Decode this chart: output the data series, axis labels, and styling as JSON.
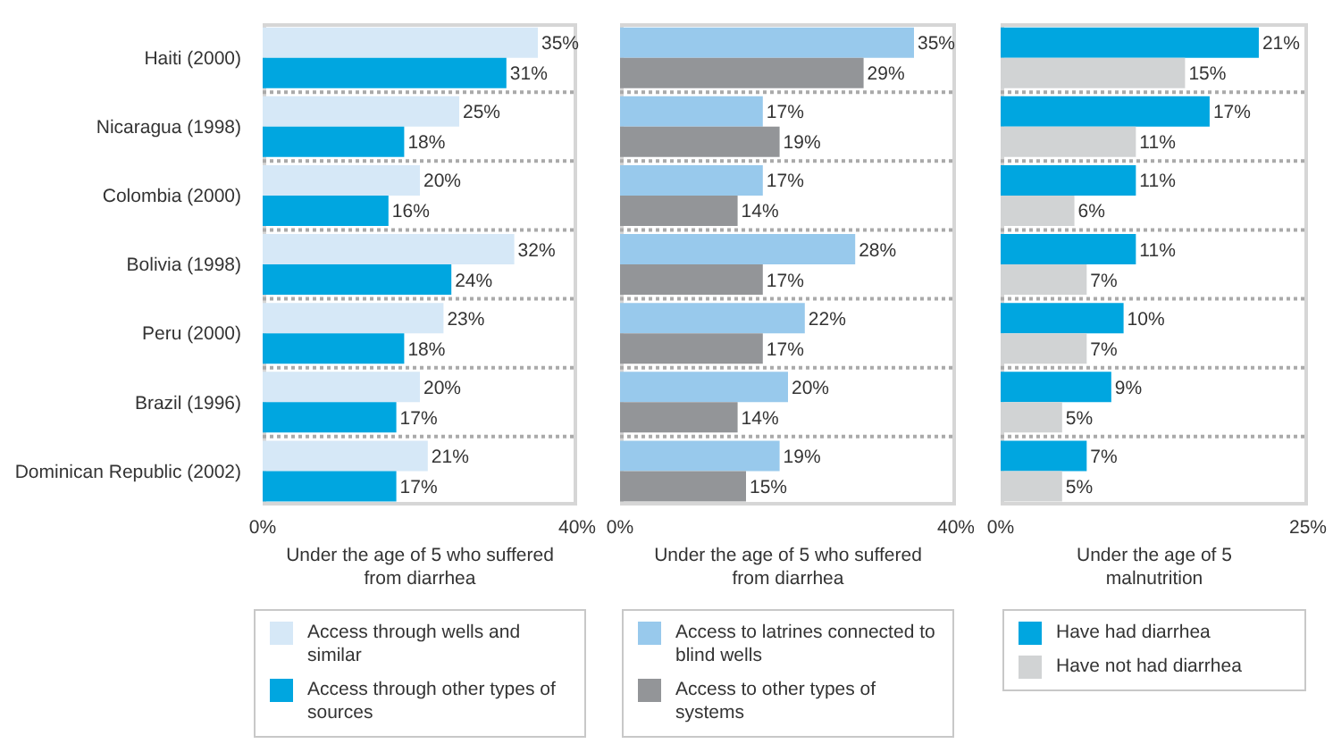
{
  "chart_data": [
    {
      "type": "bar",
      "orientation": "horizontal",
      "categories": [
        "Haiti (2000)",
        "Nicaragua (1998)",
        "Colombia (2000)",
        "Bolivia (1998)",
        "Peru (2000)",
        "Brazil (1996)",
        "Dominican Republic (2002)"
      ],
      "xlabel": "Under the age of 5 who suffered from diarrhea",
      "xlim": [
        0,
        40
      ],
      "xticks": [
        {
          "value": 0,
          "label": "0%"
        },
        {
          "value": 40,
          "label": "40%"
        }
      ],
      "grid": "y",
      "legend": "bottom",
      "series": [
        {
          "name": "Access through wells and similar",
          "color": "#d6e8f7",
          "values": [
            35,
            25,
            20,
            32,
            23,
            20,
            21
          ],
          "value_labels": [
            "35%",
            "25%",
            "20%",
            "32%",
            "23%",
            "20%",
            "21%"
          ]
        },
        {
          "name": "Access through other types of sources",
          "color": "#00a6e0",
          "values": [
            31,
            18,
            16,
            24,
            18,
            17,
            17
          ],
          "value_labels": [
            "31%",
            "18%",
            "16%",
            "24%",
            "18%",
            "17%",
            "17%"
          ]
        }
      ]
    },
    {
      "type": "bar",
      "orientation": "horizontal",
      "categories": [
        null,
        null,
        null,
        null,
        null,
        null,
        null
      ],
      "tick_labels": "x",
      "xlabel": "Under the age of 5 who suffered from diarrhea",
      "xlim": [
        0,
        40
      ],
      "xticks": [
        {
          "value": 0,
          "label": "0%"
        },
        {
          "value": 40,
          "label": "40%"
        }
      ],
      "grid": "y",
      "legend": "bottom",
      "series": [
        {
          "name": "Access to latrines connected to blind wells",
          "color": "#98c9ec",
          "values": [
            35,
            17,
            17,
            28,
            22,
            20,
            19
          ],
          "value_labels": [
            "35%",
            "17%",
            "17%",
            "28%",
            "22%",
            "20%",
            "19%"
          ]
        },
        {
          "name": "Access to other types of systems",
          "color": "#939598",
          "values": [
            29,
            19,
            14,
            17,
            17,
            14,
            15
          ],
          "value_labels": [
            "29%",
            "19%",
            "14%",
            "17%",
            "17%",
            "14%",
            "15%"
          ]
        }
      ]
    },
    {
      "type": "bar",
      "orientation": "horizontal",
      "categories": [
        null,
        null,
        null,
        null,
        null,
        null,
        null
      ],
      "tick_labels": "x",
      "xlabel": "Under the age of 5 malnutrition",
      "xlim": [
        0,
        25
      ],
      "xticks": [
        {
          "value": 0,
          "label": "0%"
        },
        {
          "value": 25,
          "label": "25%"
        }
      ],
      "grid": "y",
      "legend": "bottom",
      "series": [
        {
          "name": "Have had diarrhea",
          "color": "#00a6e0",
          "values": [
            21,
            17,
            11,
            11,
            10,
            9,
            7
          ],
          "value_labels": [
            "21%",
            "17%",
            "11%",
            "11%",
            "10%",
            "9%",
            "7%"
          ]
        },
        {
          "name": "Have not had diarrhea",
          "color": "#d1d3d4",
          "values": [
            15,
            11,
            6,
            7,
            7,
            5,
            5
          ],
          "value_labels": [
            "15%",
            "11%",
            "6%",
            "7%",
            "7%",
            "5%",
            "5%"
          ]
        }
      ]
    }
  ]
}
